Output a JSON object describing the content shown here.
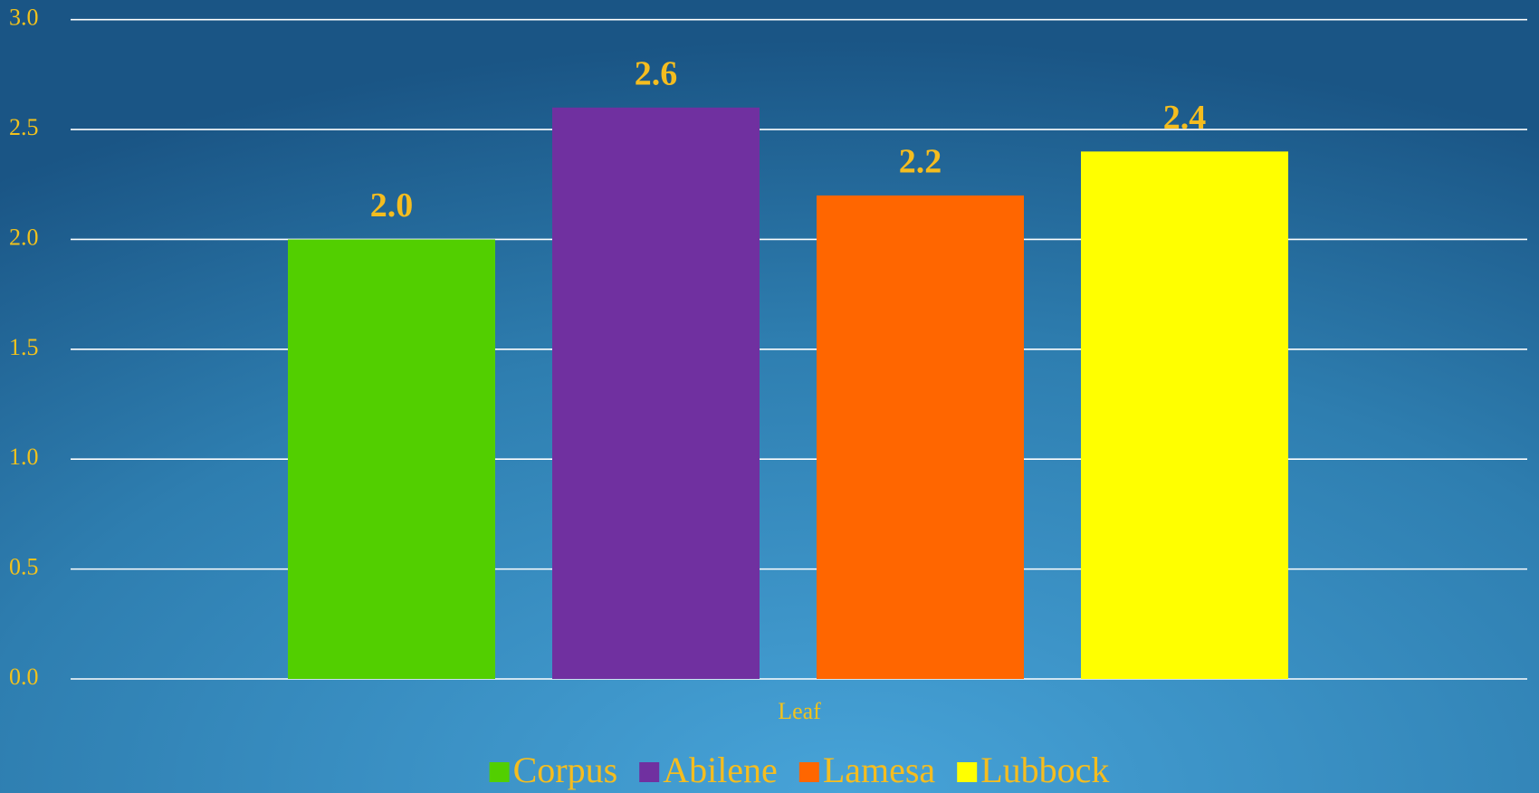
{
  "chart_data": {
    "type": "bar",
    "categories": [
      "Leaf"
    ],
    "x_label": "Leaf",
    "series": [
      {
        "name": "Corpus",
        "color": "#52cf00",
        "values": [
          2.0
        ],
        "value_labels": [
          "2.0"
        ]
      },
      {
        "name": "Abilene",
        "color": "#7030a0",
        "values": [
          2.6
        ],
        "value_labels": [
          "2.6"
        ]
      },
      {
        "name": "Lamesa",
        "color": "#ff6600",
        "values": [
          2.2
        ],
        "value_labels": [
          "2.2"
        ]
      },
      {
        "name": "Lubbock",
        "color": "#ffff00",
        "values": [
          2.4
        ],
        "value_labels": [
          "2.4"
        ]
      }
    ],
    "ylim": [
      0,
      3
    ],
    "yticks": [
      {
        "value": 0,
        "label": "0.0"
      },
      {
        "value": 0.5,
        "label": "0.5"
      },
      {
        "value": 1,
        "label": "1.0"
      },
      {
        "value": 1.5,
        "label": "1.5"
      },
      {
        "value": 2,
        "label": "2.0"
      },
      {
        "value": 2.5,
        "label": "2.5"
      },
      {
        "value": 3,
        "label": "3.0"
      }
    ],
    "grid": true,
    "legend": "bottom"
  }
}
